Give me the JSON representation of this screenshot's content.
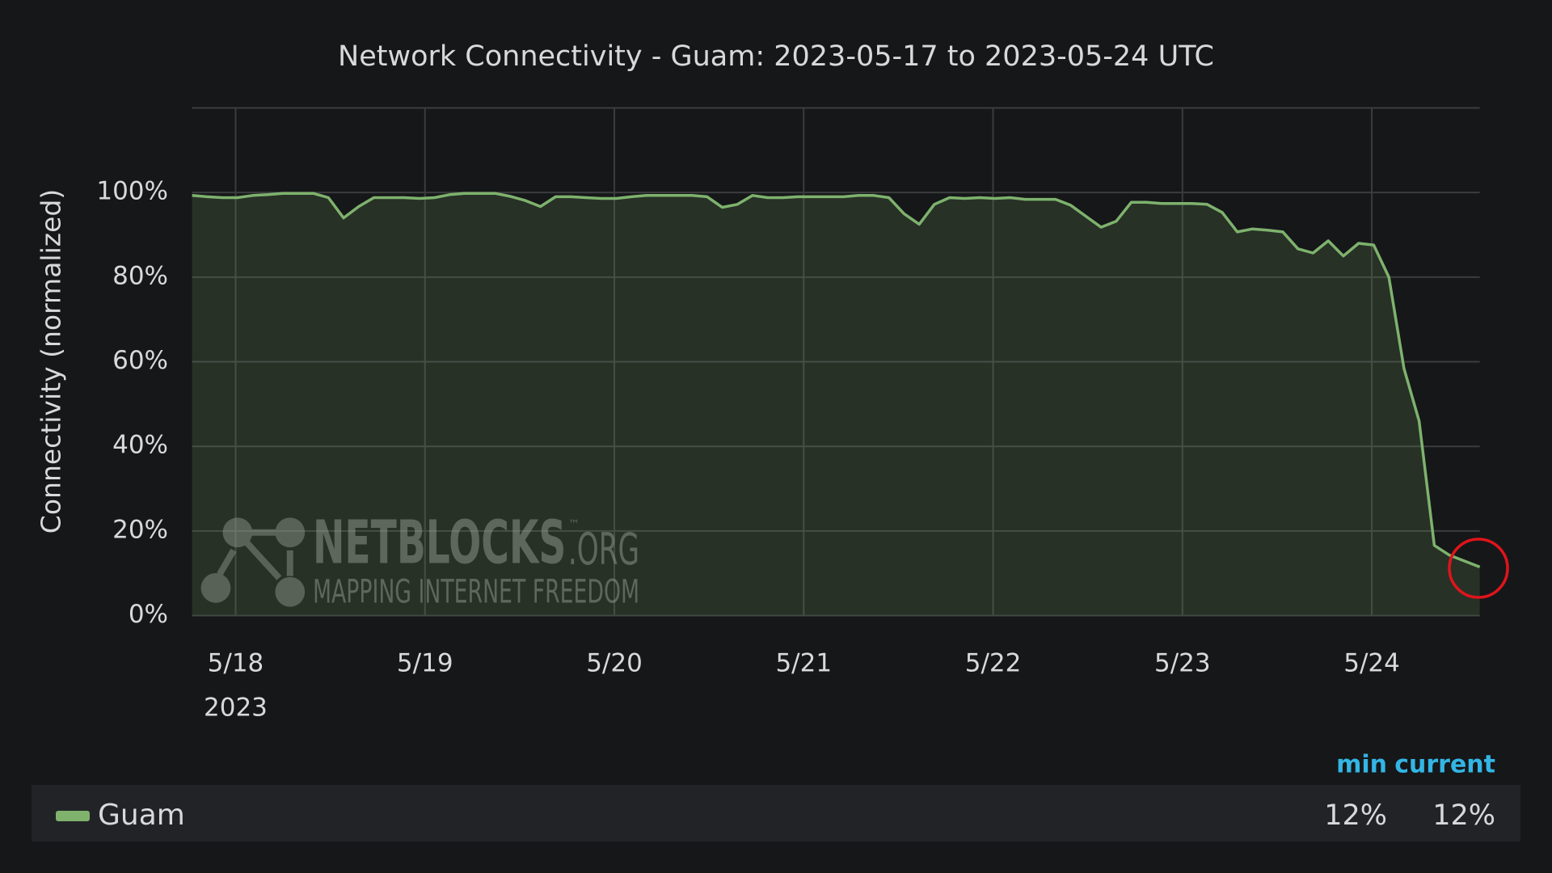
{
  "chart_data": {
    "type": "area",
    "title": "Network Connectivity - Guam: 2023-05-17 to 2023-05-24 UTC",
    "y_label": "Connectivity (normalized)",
    "x_year_label": "2023",
    "x": [
      17.77,
      17.85,
      17.93,
      18.01,
      18.09,
      18.17,
      18.25,
      18.33,
      18.41,
      18.49,
      18.57,
      18.65,
      18.73,
      18.81,
      18.89,
      18.97,
      19.05,
      19.13,
      19.21,
      19.29,
      19.37,
      19.45,
      19.53,
      19.61,
      19.69,
      19.77,
      19.85,
      19.93,
      20.01,
      20.09,
      20.17,
      20.25,
      20.33,
      20.41,
      20.49,
      20.57,
      20.65,
      20.73,
      20.81,
      20.89,
      20.97,
      21.05,
      21.13,
      21.21,
      21.29,
      21.37,
      21.45,
      21.53,
      21.61,
      21.69,
      21.77,
      21.85,
      21.93,
      22.01,
      22.09,
      22.17,
      22.25,
      22.33,
      22.41,
      22.49,
      22.57,
      22.65,
      22.73,
      22.81,
      22.89,
      22.97,
      23.05,
      23.13,
      23.21,
      23.29,
      23.37,
      23.45,
      23.53,
      23.61,
      23.69,
      23.77,
      23.85,
      23.93,
      24.01,
      24.09,
      24.17,
      24.25,
      24.33,
      24.41,
      24.49,
      24.57
    ],
    "series": [
      {
        "name": "Guam",
        "color": "#7eb26d",
        "values": [
          99.3,
          99,
          98.8,
          98.8,
          99.3,
          99.5,
          99.8,
          99.8,
          99.8,
          98.8,
          94,
          96.7,
          98.8,
          98.8,
          98.8,
          98.6,
          98.8,
          99.5,
          99.8,
          99.8,
          99.8,
          99.1,
          98.1,
          96.7,
          99,
          99,
          98.8,
          98.6,
          98.6,
          99,
          99.3,
          99.3,
          99.3,
          99.3,
          99,
          96.5,
          97.2,
          99.3,
          98.8,
          98.8,
          99,
          99,
          99,
          99,
          99.3,
          99.3,
          98.8,
          95,
          92.5,
          97.2,
          98.8,
          98.6,
          98.8,
          98.6,
          98.8,
          98.4,
          98.4,
          98.4,
          97,
          94.4,
          91.8,
          93.2,
          97.7,
          97.7,
          97.4,
          97.4,
          97.4,
          97.2,
          95.3,
          90.7,
          91.4,
          91.1,
          90.7,
          86.7,
          85.7,
          88.6,
          85,
          88,
          87.6,
          80,
          58.4,
          46,
          16.6,
          14.3,
          12.9,
          11.5
        ]
      }
    ],
    "xlim": [
      17.77,
      24.57
    ],
    "xticks": [
      {
        "value": 18,
        "label": "5/18"
      },
      {
        "value": 19,
        "label": "5/19"
      },
      {
        "value": 20,
        "label": "5/20"
      },
      {
        "value": 21,
        "label": "5/21"
      },
      {
        "value": 22,
        "label": "5/22"
      },
      {
        "value": 23,
        "label": "5/23"
      },
      {
        "value": 24,
        "label": "5/24"
      }
    ],
    "ylim": [
      0,
      120
    ],
    "yticks": [
      {
        "value": 0,
        "label": "0%"
      },
      {
        "value": 20,
        "label": "20%"
      },
      {
        "value": 40,
        "label": "40%"
      },
      {
        "value": 60,
        "label": "60%"
      },
      {
        "value": 80,
        "label": "80%"
      },
      {
        "value": 100,
        "label": "100%"
      }
    ],
    "grid": true,
    "legend_stats": {
      "headers": [
        "min",
        "current"
      ],
      "values": [
        "12%",
        "12%"
      ]
    },
    "watermark": {
      "name": "NETBLOCKS",
      "tm": "™",
      "domain": ".ORG",
      "tagline": "MAPPING INTERNET FREEDOM"
    }
  }
}
